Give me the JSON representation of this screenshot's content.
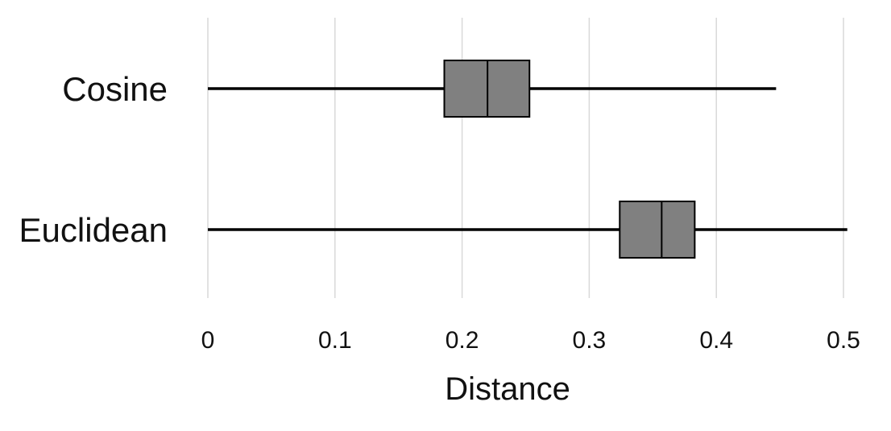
{
  "chart_data": {
    "type": "box",
    "orientation": "horizontal",
    "title": "",
    "xlabel": "Distance",
    "ylabel": "",
    "xlim": [
      0,
      0.5
    ],
    "x_ticks": [
      "0",
      "0.1",
      "0.2",
      "0.3",
      "0.4",
      "0.5"
    ],
    "x_tick_values": [
      0,
      0.1,
      0.2,
      0.3,
      0.4,
      0.5
    ],
    "grid": "vertical",
    "categories": [
      "Cosine",
      "Euclidean"
    ],
    "boxes": [
      {
        "category": "Cosine",
        "min": 0,
        "q1": 0.186,
        "median": 0.22,
        "q3": 0.253,
        "max": 0.447
      },
      {
        "category": "Euclidean",
        "min": 0,
        "q1": 0.324,
        "median": 0.357,
        "q3": 0.383,
        "max": 0.503
      }
    ],
    "colors": {
      "box_fill": "#808080",
      "box_stroke": "#000000",
      "whisker": "#000000",
      "grid": "#d9d9d9"
    }
  }
}
